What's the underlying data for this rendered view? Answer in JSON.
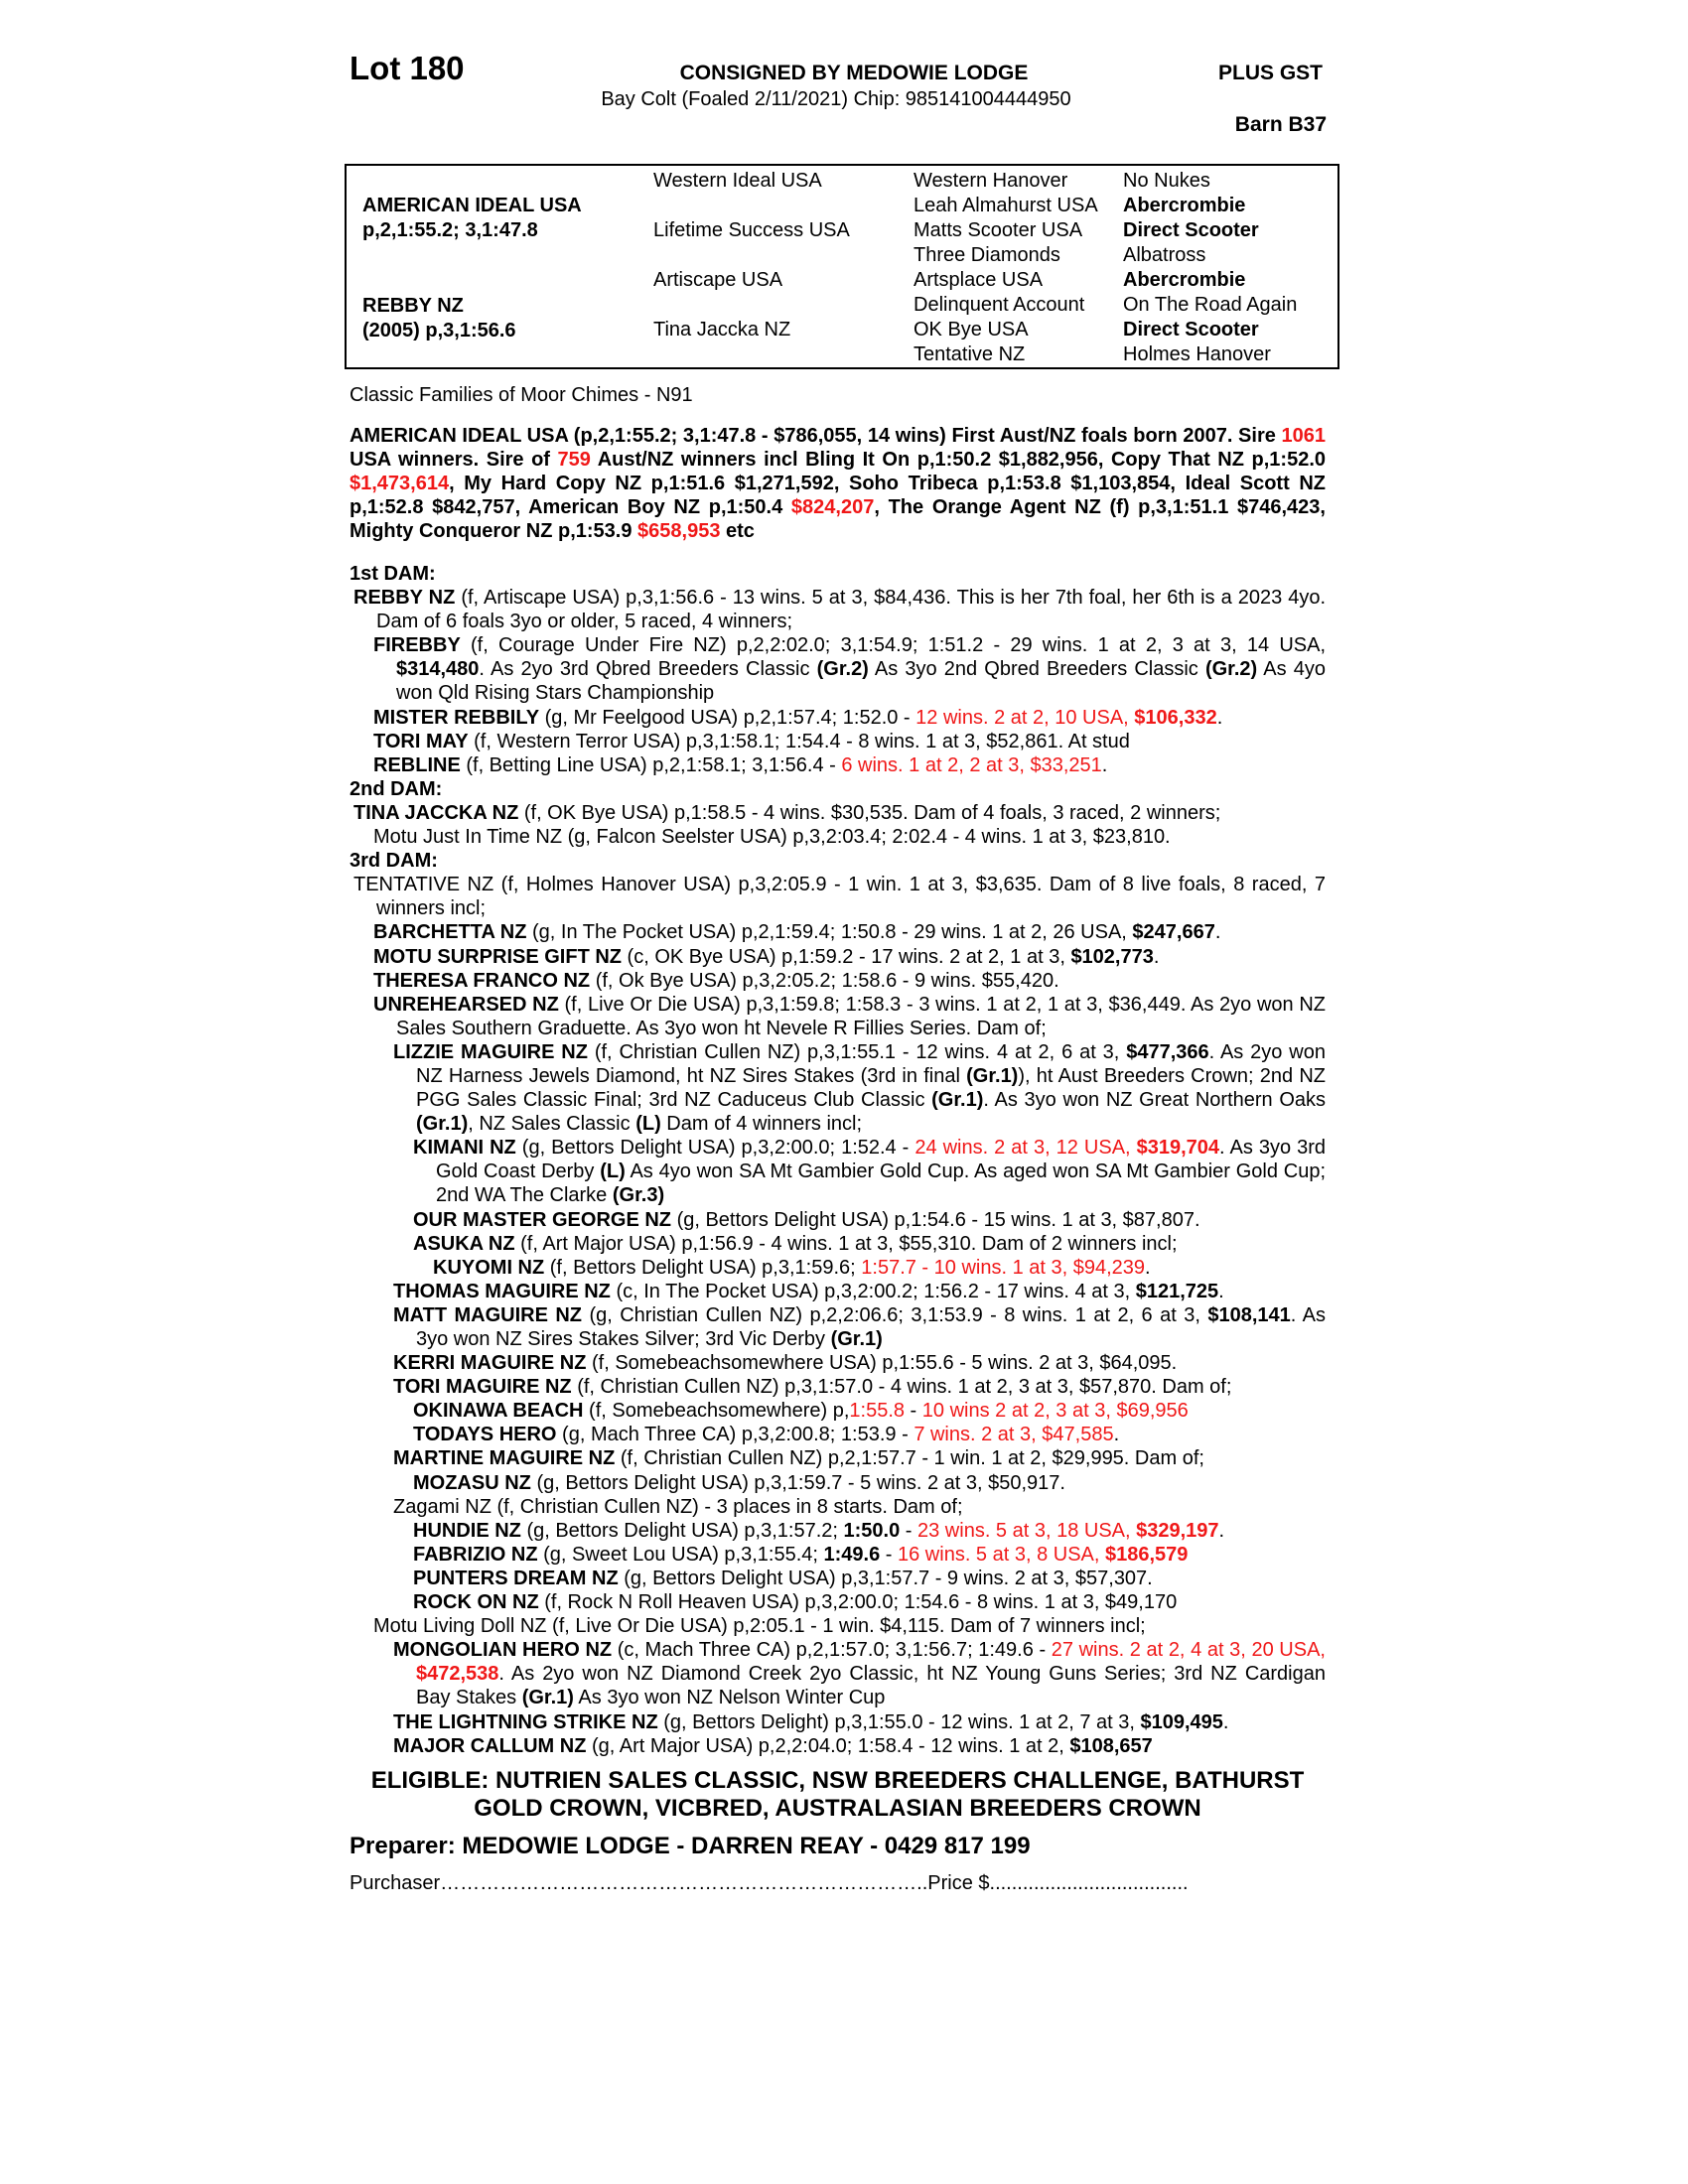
{
  "header": {
    "lot": "Lot 180",
    "consigned": "CONSIGNED BY MEDOWIE LODGE",
    "description": "Bay Colt (Foaled 2/11/2021) Chip: 985141004444950",
    "plus_gst": "PLUS GST",
    "barn": "Barn B37"
  },
  "pedigree": {
    "sire_name": "AMERICAN IDEAL USA",
    "sire_record": "p,2,1:55.2; 3,1:47.8",
    "dam_name": "REBBY NZ",
    "dam_record": "(2005) p,3,1:56.6",
    "gen2": [
      "Western Ideal USA",
      "Lifetime Success USA",
      "Artiscape USA",
      "Tina Jaccka NZ"
    ],
    "gen3": [
      "Western Hanover",
      "Leah Almahurst USA",
      "Matts Scooter USA",
      "Three Diamonds",
      "Artsplace USA",
      "Delinquent Account",
      "OK Bye USA",
      "Tentative NZ"
    ],
    "gen4": [
      {
        "name": "No Nukes",
        "bold": false
      },
      {
        "name": "Abercrombie",
        "bold": true
      },
      {
        "name": "Direct Scooter",
        "bold": true
      },
      {
        "name": "Albatross",
        "bold": false
      },
      {
        "name": "Abercrombie",
        "bold": true
      },
      {
        "name": "On The Road Again",
        "bold": false
      },
      {
        "name": "Direct Scooter",
        "bold": true
      },
      {
        "name": "Holmes Hanover",
        "bold": false
      }
    ]
  },
  "family": "Classic Families of Moor Chimes - N91",
  "sire_paragraph": [
    [
      "AMERICAN IDEAL USA (p,2,1:55.2; 3,1:47.8 - $786,055, 14 wins) First Aust/NZ foals born 2007. Sire ",
      "b"
    ],
    [
      "1061",
      "r"
    ],
    [
      " USA winners. Sire of ",
      "b"
    ],
    [
      "759",
      "r"
    ],
    [
      " Aust/NZ winners incl Bling It On p,1:50.2 $1,882,956, Copy That NZ p,1:52.0 ",
      "b"
    ],
    [
      "$1,473,614",
      "r"
    ],
    [
      ", My Hard Copy NZ p,1:51.6 $1,271,592, Soho Tribeca p,1:53.8 $1,103,854, Ideal Scott NZ p,1:52.8 $842,757, American Boy NZ p,1:50.4 ",
      "b"
    ],
    [
      "$824,207",
      "r"
    ],
    [
      ", The Orange Agent NZ (f) p,3,1:51.1 $746,423, Mighty Conqueror NZ p,1:53.9 ",
      "b"
    ],
    [
      "$658,953",
      "r"
    ],
    [
      " etc",
      "b"
    ]
  ],
  "dam_lines": [
    {
      "heading": "1st DAM:"
    },
    {
      "level": 0,
      "segs": [
        [
          "REBBY NZ",
          "b"
        ],
        [
          " (f, Artiscape USA) p,3,1:56.6 - 13 wins. 5 at 3, $84,436. This is her 7th foal, her 6th is a 2023 4yo. Dam of 6 foals 3yo or older, 5 raced, 4 winners;",
          ""
        ]
      ]
    },
    {
      "level": 1,
      "segs": [
        [
          "FIREBBY",
          "b"
        ],
        [
          " (f, Courage Under Fire NZ) p,2,2:02.0; 3,1:54.9; 1:51.2 - 29 wins. 1 at 2, 3 at 3, 14 USA, ",
          ""
        ],
        [
          "$314,480",
          "b"
        ],
        [
          ". As 2yo 3rd Qbred Breeders Classic ",
          ""
        ],
        [
          "(Gr.2)",
          "b"
        ],
        [
          " As 3yo 2nd Qbred Breeders Classic ",
          ""
        ],
        [
          "(Gr.2)",
          "b"
        ],
        [
          " As 4yo won Qld Rising Stars Championship",
          ""
        ]
      ]
    },
    {
      "level": 1,
      "segs": [
        [
          "MISTER REBBILY",
          "b"
        ],
        [
          " (g, Mr Feelgood USA) p,2,1:57.4; 1:52.0 - ",
          ""
        ],
        [
          "12 wins. 2 at 2, 10 USA, ",
          "r"
        ],
        [
          "$106,332",
          "br"
        ],
        [
          ".",
          ""
        ]
      ]
    },
    {
      "level": 1,
      "segs": [
        [
          "TORI MAY",
          "b"
        ],
        [
          " (f, Western Terror USA) p,3,1:58.1; 1:54.4 - 8 wins. 1 at 3, $52,861. At stud",
          ""
        ]
      ]
    },
    {
      "level": 1,
      "segs": [
        [
          "REBLINE",
          "b"
        ],
        [
          " (f, Betting Line USA) p,2,1:58.1; 3,1:56.4 - ",
          ""
        ],
        [
          "6 wins. 1 at 2, 2 at 3, $33,251",
          "r"
        ],
        [
          ".",
          ""
        ]
      ]
    },
    {
      "heading": "2nd DAM:"
    },
    {
      "level": 0,
      "segs": [
        [
          "TINA JACCKA NZ",
          "b"
        ],
        [
          " (f, OK Bye USA) p,1:58.5 - 4 wins. $30,535. Dam of 4 foals, 3 raced, 2 winners;",
          ""
        ]
      ]
    },
    {
      "level": 1,
      "segs": [
        [
          "Motu Just In Time NZ (g, Falcon Seelster USA) p,3,2:03.4; 2:02.4 - 4 wins. 1 at 3, $23,810.",
          ""
        ]
      ]
    },
    {
      "heading": "3rd DAM:"
    },
    {
      "level": 0,
      "segs": [
        [
          "TENTATIVE NZ (f, Holmes Hanover USA) p,3,2:05.9 - 1 win. 1 at 3, $3,635. Dam of 8 live foals, 8 raced, 7 winners incl;",
          ""
        ]
      ]
    },
    {
      "level": 1,
      "segs": [
        [
          "BARCHETTA NZ",
          "b"
        ],
        [
          " (g, In The Pocket USA) p,2,1:59.4; 1:50.8 - 29 wins. 1 at 2, 26 USA, ",
          ""
        ],
        [
          "$247,667",
          "b"
        ],
        [
          ".",
          ""
        ]
      ]
    },
    {
      "level": 1,
      "segs": [
        [
          "MOTU SURPRISE GIFT NZ",
          "b"
        ],
        [
          " (c, OK Bye USA) p,1:59.2 - 17 wins. 2 at 2, 1 at 3, ",
          ""
        ],
        [
          "$102,773",
          "b"
        ],
        [
          ".",
          ""
        ]
      ]
    },
    {
      "level": 1,
      "segs": [
        [
          "THERESA FRANCO NZ",
          "b"
        ],
        [
          " (f, Ok Bye USA) p,3,2:05.2; 1:58.6 - 9 wins. $55,420.",
          ""
        ]
      ]
    },
    {
      "level": 1,
      "segs": [
        [
          "UNREHEARSED NZ",
          "b"
        ],
        [
          " (f, Live Or Die USA) p,3,1:59.8; 1:58.3 - 3 wins. 1 at 2, 1 at 3, $36,449. As 2yo won NZ Sales Southern Graduette. As 3yo won ht Nevele R Fillies Series. Dam of;",
          ""
        ]
      ]
    },
    {
      "level": 2,
      "segs": [
        [
          "LIZZIE MAGUIRE NZ",
          "b"
        ],
        [
          " (f, Christian Cullen NZ) p,3,1:55.1 - 12 wins. 4 at 2, 6 at 3, ",
          ""
        ],
        [
          "$477,366",
          "b"
        ],
        [
          ". As 2yo won NZ Harness Jewels Diamond, ht NZ Sires Stakes (3rd in final ",
          ""
        ],
        [
          "(Gr.1)",
          "b"
        ],
        [
          "), ht Aust Breeders Crown; 2nd NZ PGG Sales Classic Final; 3rd NZ Caduceus Club Classic ",
          ""
        ],
        [
          "(Gr.1)",
          "b"
        ],
        [
          ". As 3yo won NZ Great Northern Oaks ",
          ""
        ],
        [
          "(Gr.1)",
          "b"
        ],
        [
          ", NZ Sales Classic ",
          ""
        ],
        [
          "(L)",
          "b"
        ],
        [
          " Dam of 4 winners incl;",
          ""
        ]
      ]
    },
    {
      "level": 3,
      "segs": [
        [
          "KIMANI NZ",
          "b"
        ],
        [
          " (g, Bettors Delight USA) p,3,2:00.0; 1:52.4 - ",
          ""
        ],
        [
          "24 wins. 2 at 3, 12 USA, ",
          "r"
        ],
        [
          "$319,704",
          "br"
        ],
        [
          ". As 3yo 3rd Gold Coast Derby ",
          ""
        ],
        [
          "(L)",
          "b"
        ],
        [
          " As 4yo won SA Mt Gambier Gold Cup. As aged won SA Mt Gambier Gold Cup; 2nd WA The Clarke ",
          ""
        ],
        [
          "(Gr.3)",
          "b"
        ]
      ]
    },
    {
      "level": 3,
      "segs": [
        [
          "OUR MASTER GEORGE NZ",
          "b"
        ],
        [
          " (g, Bettors Delight USA) p,1:54.6 - 15 wins. 1 at 3, $87,807.",
          ""
        ]
      ]
    },
    {
      "level": 3,
      "segs": [
        [
          "ASUKA NZ",
          "b"
        ],
        [
          " (f, Art Major USA) p,1:56.9 - 4 wins. 1 at 3, $55,310. Dam of 2 winners incl;",
          ""
        ]
      ]
    },
    {
      "level": 4,
      "segs": [
        [
          "KUYOMI NZ",
          "b"
        ],
        [
          " (f, Bettors Delight USA) p,3,1:59.6; ",
          ""
        ],
        [
          "1:57.7 - 10 wins. 1 at 3, $94,239",
          "r"
        ],
        [
          ".",
          ""
        ]
      ]
    },
    {
      "level": 2,
      "segs": [
        [
          "THOMAS MAGUIRE NZ",
          "b"
        ],
        [
          " (c, In The Pocket USA) p,3,2:00.2; 1:56.2 - 17 wins. 4 at 3, ",
          ""
        ],
        [
          "$121,725",
          "b"
        ],
        [
          ".",
          ""
        ]
      ]
    },
    {
      "level": 2,
      "segs": [
        [
          "MATT MAGUIRE NZ",
          "b"
        ],
        [
          " (g, Christian Cullen NZ) p,2,2:06.6; 3,1:53.9 - 8 wins. 1 at 2, 6 at 3, ",
          ""
        ],
        [
          "$108,141",
          "b"
        ],
        [
          ". As 3yo won NZ Sires Stakes Silver; 3rd Vic Derby ",
          ""
        ],
        [
          "(Gr.1)",
          "b"
        ]
      ]
    },
    {
      "level": 2,
      "segs": [
        [
          "KERRI MAGUIRE NZ",
          "b"
        ],
        [
          " (f, Somebeachsomewhere USA) p,1:55.6 - 5 wins. 2 at 3, $64,095.",
          ""
        ]
      ]
    },
    {
      "level": 2,
      "segs": [
        [
          "TORI MAGUIRE NZ",
          "b"
        ],
        [
          " (f, Christian Cullen NZ) p,3,1:57.0 - 4 wins. 1 at 2, 3 at 3, $57,870. Dam of;",
          ""
        ]
      ]
    },
    {
      "level": 3,
      "segs": [
        [
          "OKINAWA BEACH",
          "b"
        ],
        [
          " (f, Somebeachsomewhere) p,",
          ""
        ],
        [
          "1:55.8",
          "r"
        ],
        [
          " - ",
          ""
        ],
        [
          "10 wins 2 at 2, 3 at 3, $69,956",
          "r"
        ]
      ]
    },
    {
      "level": 3,
      "segs": [
        [
          "TODAYS HERO",
          "b"
        ],
        [
          " (g, Mach Three CA) p,3,2:00.8; 1:53.9 - ",
          ""
        ],
        [
          "7 wins. 2 at 3, $47,585",
          "r"
        ],
        [
          ".",
          ""
        ]
      ]
    },
    {
      "level": 2,
      "segs": [
        [
          "MARTINE MAGUIRE NZ",
          "b"
        ],
        [
          " (f, Christian Cullen NZ) p,2,1:57.7 - 1 win. 1 at 2, $29,995. Dam of;",
          ""
        ]
      ]
    },
    {
      "level": 3,
      "segs": [
        [
          "MOZASU NZ",
          "b"
        ],
        [
          " (g, Bettors Delight USA) p,3,1:59.7 - 5 wins. 2 at 3, $50,917.",
          ""
        ]
      ]
    },
    {
      "level": 2,
      "segs": [
        [
          "Zagami NZ (f, Christian Cullen NZ) - 3 places in 8 starts. Dam of;",
          ""
        ]
      ]
    },
    {
      "level": 3,
      "segs": [
        [
          "HUNDIE NZ",
          "b"
        ],
        [
          " (g, Bettors Delight USA) p,3,1:57.2; ",
          ""
        ],
        [
          "1:50.0",
          "b"
        ],
        [
          " - ",
          ""
        ],
        [
          "23 wins. 5 at 3, 18 USA, ",
          "r"
        ],
        [
          "$329,197",
          "br"
        ],
        [
          ".",
          ""
        ]
      ]
    },
    {
      "level": 3,
      "segs": [
        [
          "FABRIZIO NZ",
          "b"
        ],
        [
          " (g, Sweet Lou USA) p,3,1:55.4; ",
          ""
        ],
        [
          "1:49.6",
          "b"
        ],
        [
          " - ",
          ""
        ],
        [
          "16 wins. 5 at 3, 8 USA, ",
          "r"
        ],
        [
          "$186,579",
          "br"
        ]
      ]
    },
    {
      "level": 3,
      "segs": [
        [
          "PUNTERS DREAM NZ",
          "b"
        ],
        [
          " (g, Bettors Delight USA) p,3,1:57.7 - 9 wins. 2 at 3, $57,307.",
          ""
        ]
      ]
    },
    {
      "level": 3,
      "segs": [
        [
          "ROCK ON NZ",
          "b"
        ],
        [
          " (f, Rock N Roll Heaven USA) p,3,2:00.0; 1:54.6 - 8 wins. 1 at 3, $49,170",
          ""
        ]
      ]
    },
    {
      "level": 1,
      "segs": [
        [
          "Motu Living Doll NZ (f, Live Or Die USA) p,2:05.1 - 1 win. $4,115. Dam of 7 winners incl;",
          ""
        ]
      ]
    },
    {
      "level": 2,
      "segs": [
        [
          "MONGOLIAN HERO NZ",
          "b"
        ],
        [
          " (c, Mach Three CA) p,2,1:57.0; 3,1:56.7; 1:49.6 - ",
          ""
        ],
        [
          "27 wins. 2 at 2, 4 at 3, 20 USA, ",
          "r"
        ],
        [
          "$472,538",
          "br"
        ],
        [
          ". As 2yo won NZ Diamond Creek 2yo Classic, ht NZ Young Guns Series; 3rd NZ Cardigan Bay Stakes ",
          ""
        ],
        [
          "(Gr.1)",
          "b"
        ],
        [
          " As 3yo won NZ Nelson Winter Cup",
          ""
        ]
      ]
    },
    {
      "level": 2,
      "segs": [
        [
          "THE LIGHTNING STRIKE NZ",
          "b"
        ],
        [
          " (g, Bettors Delight) p,3,1:55.0 - 12 wins. 1 at 2, 7 at 3, ",
          ""
        ],
        [
          "$109,495",
          "b"
        ],
        [
          ".",
          ""
        ]
      ]
    },
    {
      "level": 2,
      "segs": [
        [
          "MAJOR CALLUM NZ",
          "b"
        ],
        [
          " (g, Art Major USA) p,2,2:04.0; 1:58.4 - 12 wins. 1 at 2, ",
          ""
        ],
        [
          "$108,657",
          "b"
        ]
      ]
    }
  ],
  "eligible": "ELIGIBLE: NUTRIEN SALES CLASSIC, NSW BREEDERS CHALLENGE, BATHURST GOLD CROWN, VICBRED, AUSTRALASIAN BREEDERS CROWN",
  "preparer": "Preparer: MEDOWIE LODGE - DARREN REAY - 0429 817 199",
  "purchaser_label": "Purchaser………………………………………………………………..",
  "price_label": "Price $....................................",
  "colors": {
    "highlight": "#f01818",
    "text": "#000000"
  }
}
